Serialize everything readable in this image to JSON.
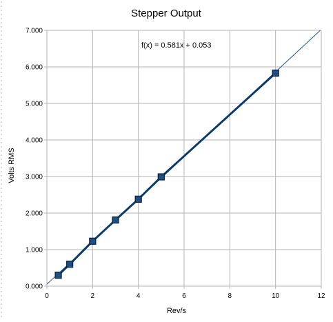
{
  "chart_data": {
    "type": "scatter",
    "title": "Stepper Output",
    "xlabel": "Rev/s",
    "ylabel": "Volts RMS",
    "xlim": [
      0,
      12
    ],
    "ylim": [
      0,
      7
    ],
    "x_ticks": [
      "0",
      "2",
      "4",
      "6",
      "8",
      "10",
      "12"
    ],
    "y_ticks": [
      "0.000",
      "1.000",
      "2.000",
      "3.000",
      "4.000",
      "5.000",
      "6.000",
      "7.000"
    ],
    "grid": true,
    "series": [
      {
        "x": [
          0.5,
          1,
          2,
          3,
          4,
          5,
          10
        ],
        "y": [
          0.3,
          0.6,
          1.23,
          1.81,
          2.38,
          2.99,
          5.83
        ],
        "color": "#0b3a6e",
        "marker": "square",
        "connected": true
      }
    ],
    "trendline": {
      "label": "f(x) = 0.581x + 0.053",
      "slope": 0.581,
      "intercept": 0.053,
      "color": "#1d5a8e"
    }
  }
}
